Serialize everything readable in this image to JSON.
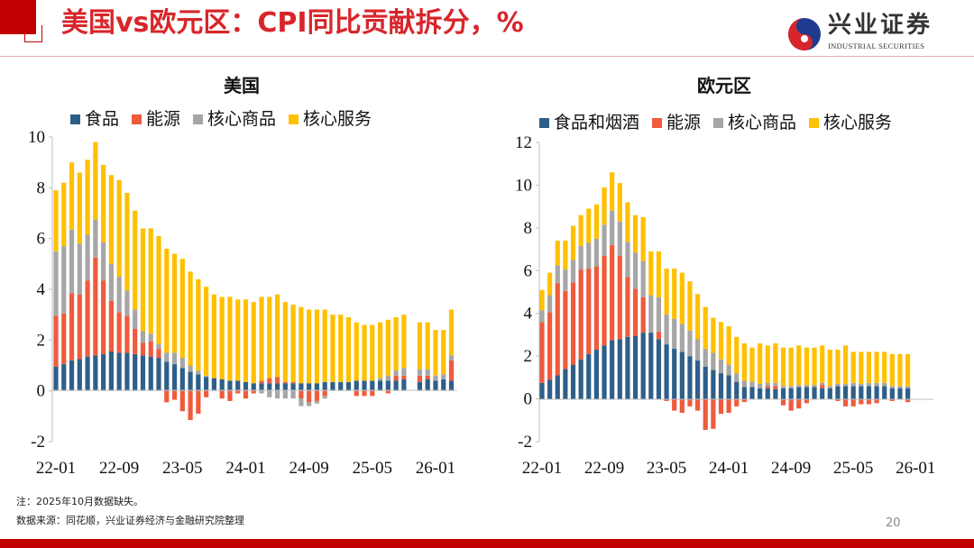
{
  "header": {
    "title": "美国vs欧元区：CPI同比贡献拆分，%",
    "logo_cn": "兴业证券",
    "logo_en": "INDUSTRIAL SECURITIES"
  },
  "footer": {
    "note": "注：2025年10月数据缺失。",
    "source": "数据来源：同花顺，兴业证券经济与金融研究院整理",
    "page": "20"
  },
  "colors": {
    "food": "#2e5f8a",
    "energy": "#ef5b3c",
    "core_goods": "#a6a6a6",
    "core_services": "#ffc000",
    "accent": "#c00000"
  },
  "chart_data": [
    {
      "type": "bar",
      "stacked": true,
      "title": "美国",
      "ylim": [
        -2,
        10
      ],
      "yticks": [
        "10",
        "8",
        "6",
        "4",
        "2",
        "0",
        "-2"
      ],
      "xticklabels": [
        "22-01",
        "22-09",
        "23-05",
        "24-01",
        "24-09",
        "25-05",
        "26-01"
      ],
      "start": "22-01",
      "series": [
        {
          "name": "食品",
          "color": "#2e5f8a",
          "values": [
            0.95,
            1.05,
            1.2,
            1.25,
            1.35,
            1.4,
            1.45,
            1.55,
            1.5,
            1.5,
            1.45,
            1.4,
            1.35,
            1.3,
            1.15,
            1.05,
            0.9,
            0.75,
            0.65,
            0.55,
            0.5,
            0.45,
            0.4,
            0.4,
            0.35,
            0.3,
            0.3,
            0.3,
            0.3,
            0.3,
            0.3,
            0.3,
            0.3,
            0.3,
            0.35,
            0.35,
            0.35,
            0.35,
            0.4,
            0.4,
            0.4,
            0.4,
            0.4,
            0.4,
            0.45,
            null,
            0.35,
            0.45,
            0.4,
            0.45,
            0.4
          ]
        },
        {
          "name": "能源",
          "color": "#ef5b3c",
          "values": [
            2.0,
            2.0,
            2.65,
            2.55,
            3.0,
            3.85,
            2.9,
            2.0,
            1.6,
            1.45,
            1.0,
            0.5,
            0.6,
            0.35,
            -0.45,
            -0.35,
            -0.8,
            -1.15,
            -0.9,
            -0.25,
            0,
            -0.3,
            -0.4,
            -0.1,
            -0.3,
            -0.1,
            0.1,
            0.2,
            0.25,
            0.05,
            0.05,
            -0.3,
            -0.45,
            -0.4,
            -0.2,
            0,
            0,
            0,
            -0.2,
            -0.2,
            -0.2,
            0,
            -0.1,
            0.2,
            0.15,
            null,
            0.25,
            0.15,
            0,
            0,
            0.8
          ]
        },
        {
          "name": "核心商品",
          "color": "#a6a6a6",
          "values": [
            2.55,
            2.65,
            2.5,
            2.0,
            1.8,
            1.5,
            1.5,
            1.45,
            1.4,
            1.0,
            0.75,
            0.45,
            0.3,
            0.2,
            0.35,
            0.45,
            0.4,
            0.25,
            0.15,
            0.05,
            0,
            0,
            0,
            0,
            0,
            0,
            -0.1,
            -0.25,
            -0.3,
            -0.3,
            -0.3,
            -0.3,
            -0.15,
            -0.1,
            -0.1,
            0,
            0,
            0,
            0,
            0,
            0,
            0.1,
            0.2,
            0.2,
            0.3,
            null,
            0.25,
            0.25,
            0.2,
            0.2,
            0.2
          ]
        },
        {
          "name": "核心服务",
          "color": "#ffc000",
          "values": [
            2.4,
            2.5,
            2.65,
            2.8,
            2.95,
            3.05,
            3.05,
            3.5,
            3.8,
            3.85,
            3.9,
            4.05,
            4.15,
            4.25,
            4.1,
            3.9,
            3.9,
            3.7,
            3.6,
            3.5,
            3.3,
            3.25,
            3.3,
            3.2,
            3.25,
            3.2,
            3.3,
            3.2,
            3.25,
            3.15,
            3.05,
            3.0,
            2.9,
            2.9,
            2.85,
            2.65,
            2.65,
            2.55,
            2.3,
            2.2,
            2.2,
            2.2,
            2.2,
            2.1,
            2.1,
            null,
            1.85,
            1.85,
            1.8,
            1.75,
            1.8
          ]
        }
      ]
    },
    {
      "type": "bar",
      "stacked": true,
      "title": "欧元区",
      "ylim": [
        -2,
        12
      ],
      "yticks": [
        "12",
        "10",
        "8",
        "6",
        "4",
        "2",
        "0",
        "-2"
      ],
      "xticklabels": [
        "22-01",
        "22-09",
        "23-05",
        "24-01",
        "24-09",
        "25-05",
        "26-01"
      ],
      "start": "22-01",
      "series": [
        {
          "name": "食品和烟酒",
          "color": "#2e5f8a",
          "values": [
            0.75,
            0.9,
            1.1,
            1.4,
            1.6,
            1.85,
            2.1,
            2.3,
            2.5,
            2.75,
            2.8,
            2.9,
            2.95,
            3.1,
            3.1,
            2.8,
            2.55,
            2.35,
            2.2,
            2.0,
            1.8,
            1.5,
            1.35,
            1.2,
            1.1,
            0.8,
            0.55,
            0.55,
            0.5,
            0.5,
            0.45,
            0.5,
            0.5,
            0.55,
            0.55,
            0.55,
            0.5,
            0.5,
            0.6,
            0.6,
            0.6,
            0.6,
            0.6,
            0.6,
            0.6,
            0.5,
            0.5,
            0.5
          ]
        },
        {
          "name": "能源",
          "color": "#ef5b3c",
          "values": [
            2.85,
            3.15,
            4.3,
            3.65,
            3.85,
            4.2,
            4.0,
            3.9,
            4.2,
            4.45,
            3.9,
            2.8,
            2.2,
            1.65,
            0,
            0.35,
            -0.1,
            -0.55,
            -0.65,
            -0.35,
            -0.55,
            -1.45,
            -1.4,
            -0.7,
            -0.65,
            -0.35,
            -0.15,
            0,
            0,
            0.1,
            0.15,
            -0.3,
            -0.55,
            -0.45,
            -0.2,
            0,
            0.15,
            0,
            -0.1,
            -0.35,
            -0.35,
            -0.25,
            -0.25,
            -0.2,
            0,
            -0.1,
            0,
            -0.15
          ]
        },
        {
          "name": "核心商品",
          "color": "#a6a6a6",
          "values": [
            0.55,
            0.8,
            0.85,
            1.0,
            1.05,
            1.1,
            1.2,
            1.3,
            1.45,
            1.6,
            1.6,
            1.65,
            1.7,
            1.7,
            1.75,
            1.6,
            1.4,
            1.4,
            1.3,
            1.2,
            1.0,
            0.85,
            0.8,
            0.65,
            0.5,
            0.4,
            0.3,
            0.25,
            0.2,
            0.15,
            0.15,
            0.1,
            0.1,
            0.1,
            0.1,
            0.1,
            0.1,
            0.1,
            0.1,
            0.1,
            0.15,
            0.1,
            0.15,
            0.15,
            0.15,
            0.1,
            0.1,
            0.1
          ]
        },
        {
          "name": "核心服务",
          "color": "#ffc000",
          "values": [
            0.95,
            1.05,
            1.15,
            1.35,
            1.6,
            1.45,
            1.6,
            1.6,
            1.75,
            1.8,
            1.8,
            1.85,
            1.75,
            2.05,
            2.05,
            2.15,
            2.15,
            2.35,
            2.4,
            2.3,
            2.1,
            1.95,
            1.65,
            1.75,
            1.8,
            1.7,
            1.75,
            1.6,
            1.9,
            1.75,
            1.85,
            1.8,
            1.8,
            1.85,
            1.75,
            1.75,
            1.75,
            1.7,
            1.6,
            1.8,
            1.45,
            1.5,
            1.45,
            1.45,
            1.45,
            1.5,
            1.5,
            1.5
          ]
        }
      ]
    }
  ]
}
